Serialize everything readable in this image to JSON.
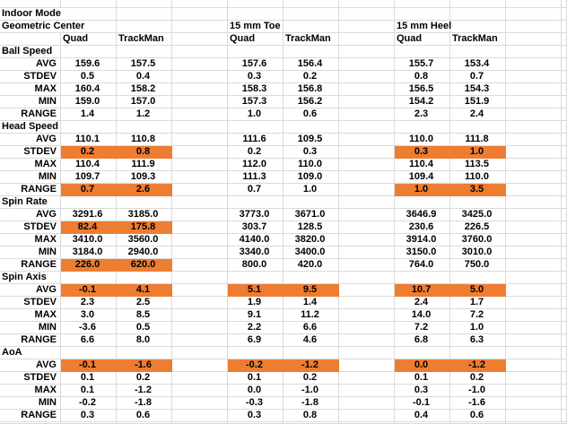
{
  "table": {
    "corner_label": "Indoor Mode",
    "groups": [
      {
        "label": "Geometric Center",
        "devices": [
          "Quad",
          "TrackMan"
        ]
      },
      {
        "label": "15 mm Toe",
        "devices": [
          "Quad",
          "TrackMan"
        ]
      },
      {
        "label": "15 mm Heel",
        "devices": [
          "Quad",
          "TrackMan"
        ]
      }
    ],
    "sections": [
      {
        "name": "Ball Speed",
        "rows": [
          {
            "label": "AVG",
            "values": [
              "159.6",
              "157.5",
              "157.6",
              "156.4",
              "155.7",
              "153.4"
            ],
            "hl": []
          },
          {
            "label": "STDEV",
            "values": [
              "0.5",
              "0.4",
              "0.3",
              "0.2",
              "0.8",
              "0.7"
            ],
            "hl": []
          },
          {
            "label": "MAX",
            "values": [
              "160.4",
              "158.2",
              "158.3",
              "156.8",
              "156.5",
              "154.3"
            ],
            "hl": []
          },
          {
            "label": "MIN",
            "values": [
              "159.0",
              "157.0",
              "157.3",
              "156.2",
              "154.2",
              "151.9"
            ],
            "hl": []
          },
          {
            "label": "RANGE",
            "values": [
              "1.4",
              "1.2",
              "1.0",
              "0.6",
              "2.3",
              "2.4"
            ],
            "hl": []
          }
        ]
      },
      {
        "name": "Head Speed",
        "rows": [
          {
            "label": "AVG",
            "values": [
              "110.1",
              "110.8",
              "111.6",
              "109.5",
              "110.0",
              "111.8"
            ],
            "hl": []
          },
          {
            "label": "STDEV",
            "values": [
              "0.2",
              "0.8",
              "0.2",
              "0.3",
              "0.3",
              "1.0"
            ],
            "hl": [
              0,
              1,
              4,
              5
            ]
          },
          {
            "label": "MAX",
            "values": [
              "110.4",
              "111.9",
              "112.0",
              "110.0",
              "110.4",
              "113.5"
            ],
            "hl": []
          },
          {
            "label": "MIN",
            "values": [
              "109.7",
              "109.3",
              "111.3",
              "109.0",
              "109.4",
              "110.0"
            ],
            "hl": []
          },
          {
            "label": "RANGE",
            "values": [
              "0.7",
              "2.6",
              "0.7",
              "1.0",
              "1.0",
              "3.5"
            ],
            "hl": [
              0,
              1,
              4,
              5
            ]
          }
        ]
      },
      {
        "name": "Spin Rate",
        "rows": [
          {
            "label": "AVG",
            "values": [
              "3291.6",
              "3185.0",
              "3773.0",
              "3671.0",
              "3646.9",
              "3425.0"
            ],
            "hl": []
          },
          {
            "label": "STDEV",
            "values": [
              "82.4",
              "175.8",
              "303.7",
              "128.5",
              "230.6",
              "226.5"
            ],
            "hl": [
              0,
              1
            ]
          },
          {
            "label": "MAX",
            "values": [
              "3410.0",
              "3560.0",
              "4140.0",
              "3820.0",
              "3914.0",
              "3760.0"
            ],
            "hl": []
          },
          {
            "label": "MIN",
            "values": [
              "3184.0",
              "2940.0",
              "3340.0",
              "3400.0",
              "3150.0",
              "3010.0"
            ],
            "hl": []
          },
          {
            "label": "RANGE",
            "values": [
              "226.0",
              "620.0",
              "800.0",
              "420.0",
              "764.0",
              "750.0"
            ],
            "hl": [
              0,
              1
            ]
          }
        ]
      },
      {
        "name": "Spin Axis",
        "rows": [
          {
            "label": "AVG",
            "values": [
              "-0.1",
              "4.1",
              "5.1",
              "9.5",
              "10.7",
              "5.0"
            ],
            "hl": [
              0,
              1,
              2,
              3,
              4,
              5
            ]
          },
          {
            "label": "STDEV",
            "values": [
              "2.3",
              "2.5",
              "1.9",
              "1.4",
              "2.4",
              "1.7"
            ],
            "hl": []
          },
          {
            "label": "MAX",
            "values": [
              "3.0",
              "8.5",
              "9.1",
              "11.2",
              "14.0",
              "7.2"
            ],
            "hl": []
          },
          {
            "label": "MIN",
            "values": [
              "-3.6",
              "0.5",
              "2.2",
              "6.6",
              "7.2",
              "1.0"
            ],
            "hl": []
          },
          {
            "label": "RANGE",
            "values": [
              "6.6",
              "8.0",
              "6.9",
              "4.6",
              "6.8",
              "6.3"
            ],
            "hl": []
          }
        ]
      },
      {
        "name": "AoA",
        "rows": [
          {
            "label": "AVG",
            "values": [
              "-0.1",
              "-1.6",
              "-0.2",
              "-1.2",
              "0.0",
              "-1.2"
            ],
            "hl": [
              0,
              1,
              2,
              3,
              4,
              5
            ]
          },
          {
            "label": "STDEV",
            "values": [
              "0.1",
              "0.2",
              "0.1",
              "0.2",
              "0.1",
              "0.2"
            ],
            "hl": []
          },
          {
            "label": "MAX",
            "values": [
              "0.1",
              "-1.2",
              "0.0",
              "-1.0",
              "0.3",
              "-1.0"
            ],
            "hl": []
          },
          {
            "label": "MIN",
            "values": [
              "-0.2",
              "-1.8",
              "-0.3",
              "-1.8",
              "-0.1",
              "-1.6"
            ],
            "hl": []
          },
          {
            "label": "RANGE",
            "values": [
              "0.3",
              "0.6",
              "0.3",
              "0.8",
              "0.4",
              "0.6"
            ],
            "hl": []
          }
        ]
      }
    ]
  },
  "colors": {
    "highlight": "#ED7D31",
    "gridline": "#DADADA",
    "text": "#000000",
    "background": "#FFFFFF"
  }
}
